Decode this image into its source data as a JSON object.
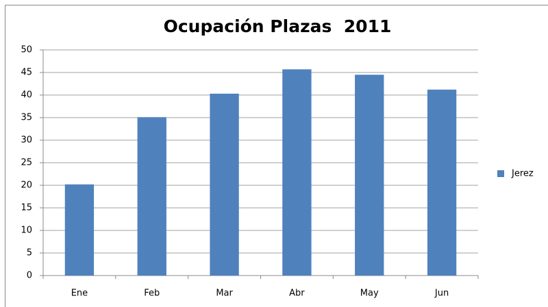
{
  "chart_data": {
    "type": "bar",
    "title": "Ocupación Plazas  2011",
    "categories": [
      "Ene",
      "Feb",
      "Mar",
      "Abr",
      "May",
      "Jun"
    ],
    "series": [
      {
        "name": "Jerez",
        "color": "#4f81bd",
        "values": [
          20.2,
          35.1,
          40.3,
          45.7,
          44.5,
          41.2
        ]
      }
    ],
    "ylim": [
      0,
      50
    ],
    "yticks": [
      0,
      5,
      10,
      15,
      20,
      25,
      30,
      35,
      40,
      45,
      50
    ],
    "grid": true,
    "legend": "right"
  }
}
